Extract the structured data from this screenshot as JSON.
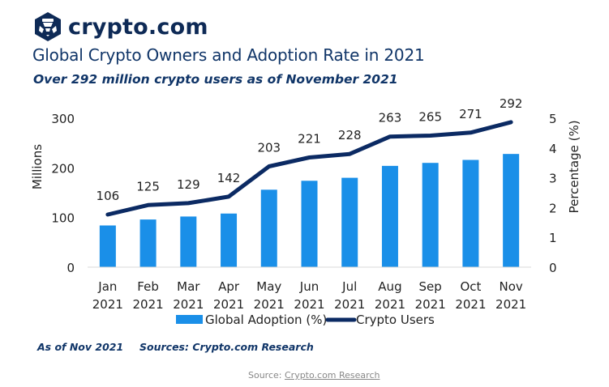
{
  "brand": {
    "name": "crypto.com",
    "icon": "crypto-com-lion-hexagon-icon",
    "color": "#0e2a56"
  },
  "header": {
    "title": "Global Crypto Owners and Adoption Rate in 2021",
    "subtitle": "Over 292 million crypto users as of November 2021"
  },
  "chart_data": {
    "type": "bar+line",
    "title": "Global Crypto Owners and Adoption Rate in 2021",
    "subtitle": "Over 292 million crypto users as of November 2021",
    "categories": [
      [
        "Jan",
        "2021"
      ],
      [
        "Feb",
        "2021"
      ],
      [
        "Mar",
        "2021"
      ],
      [
        "Apr",
        "2021"
      ],
      [
        "May",
        "2021"
      ],
      [
        "Jun",
        "2021"
      ],
      [
        "Jul",
        "2021"
      ],
      [
        "Aug",
        "2021"
      ],
      [
        "Sep",
        "2021"
      ],
      [
        "Oct",
        "2021"
      ],
      [
        "Nov",
        "2021"
      ]
    ],
    "series": [
      {
        "name": "Global Adoption (%)",
        "type": "bar",
        "axis": "right",
        "color": "#1a8fe8",
        "values": [
          1.4,
          1.6,
          1.7,
          1.8,
          2.6,
          2.9,
          3.0,
          3.4,
          3.5,
          3.6,
          3.8
        ]
      },
      {
        "name": "Crypto Users",
        "type": "line",
        "axis": "left",
        "color": "#0b2a63",
        "values": [
          106,
          125,
          129,
          142,
          203,
          221,
          228,
          263,
          265,
          271,
          292
        ],
        "data_labels": [
          "106",
          "125",
          "129",
          "142",
          "203",
          "221",
          "228",
          "263",
          "265",
          "271",
          "292"
        ]
      }
    ],
    "y_left": {
      "label": "Millions",
      "range": [
        0,
        300
      ],
      "ticks": [
        "0",
        "100",
        "200",
        "300"
      ],
      "tick_values": [
        0,
        100,
        200,
        300
      ]
    },
    "y_right": {
      "label": "Percentage (%)",
      "range": [
        0,
        5
      ],
      "ticks": [
        "0",
        "1",
        "2",
        "3",
        "4",
        "5"
      ],
      "tick_values": [
        0,
        1,
        2,
        3,
        4,
        5
      ]
    },
    "grid": false,
    "legend": {
      "position": "bottom",
      "items": [
        "Global Adoption (%)",
        "Crypto Users"
      ]
    }
  },
  "footer": {
    "as_of": "As of Nov 2021",
    "sources": "Sources: Crypto.com Research",
    "source_prefix": "Source: ",
    "source_link": "Crypto.com Research"
  }
}
